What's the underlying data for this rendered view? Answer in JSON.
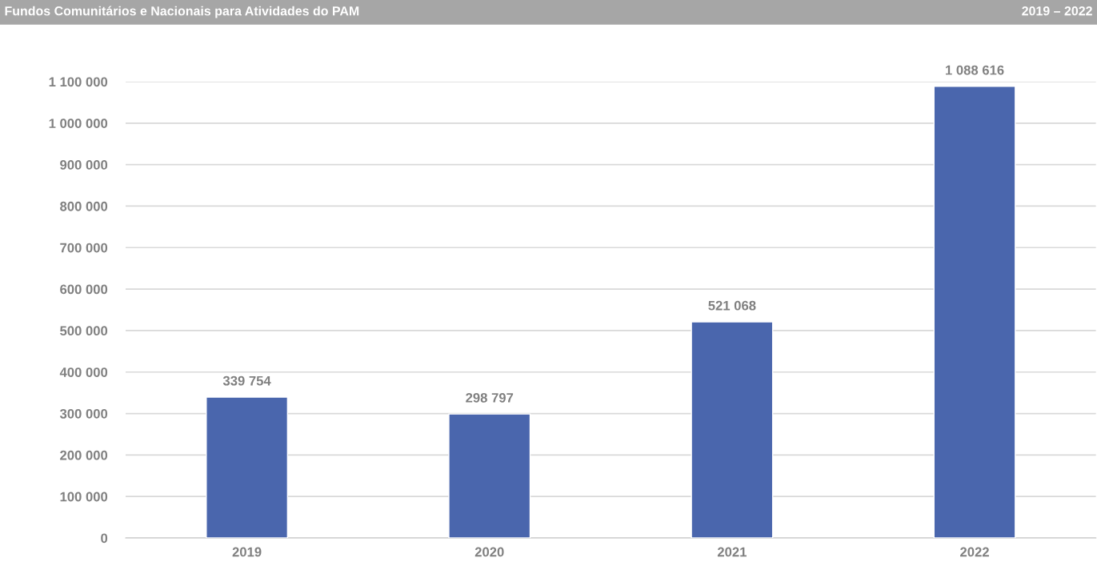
{
  "chart_data": {
    "type": "bar",
    "title": "Fundos Comunitários e Nacionais para Atividades do PAM",
    "subtitle": "2019 – 2022",
    "categories": [
      "2019",
      "2020",
      "2021",
      "2022"
    ],
    "values": [
      339754,
      298797,
      521068,
      1088616
    ],
    "value_labels": [
      "339 754",
      "298 797",
      "521 068",
      "1 088 616"
    ],
    "color": "#4a66ad",
    "ylim": [
      0,
      1100000
    ],
    "yticks": [
      {
        "value": 0,
        "label": "0"
      },
      {
        "value": 100000,
        "label": "100 000"
      },
      {
        "value": 200000,
        "label": "200 000"
      },
      {
        "value": 300000,
        "label": "300 000"
      },
      {
        "value": 400000,
        "label": "400 000"
      },
      {
        "value": 500000,
        "label": "500 000"
      },
      {
        "value": 600000,
        "label": "600 000"
      },
      {
        "value": 700000,
        "label": "700 000"
      },
      {
        "value": 800000,
        "label": "800 000"
      },
      {
        "value": 900000,
        "label": "900 000"
      },
      {
        "value": 1000000,
        "label": "1 000 000"
      },
      {
        "value": 1100000,
        "label": "1 100 000"
      }
    ],
    "grid": "y",
    "legend": false
  }
}
